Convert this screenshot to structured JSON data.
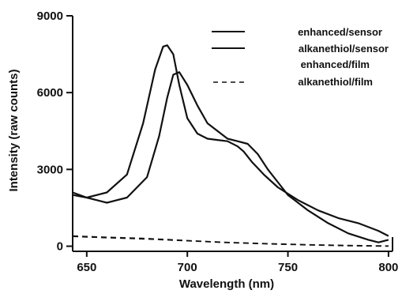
{
  "chart_data": {
    "type": "line",
    "xlabel": "Wavelength (nm)",
    "ylabel": "Intensity (raw counts)",
    "xlim": [
      643,
      802
    ],
    "ylim": [
      -200,
      9000
    ],
    "xticks": [
      650,
      700,
      750,
      800
    ],
    "yticks": [
      0,
      3000,
      6000,
      9000
    ],
    "grid": false,
    "legend_position": "top-right",
    "series": [
      {
        "name": "enhanced/sensor",
        "dash": "solid",
        "x": [
          643,
          650,
          660,
          670,
          678,
          684,
          688,
          690,
          693,
          696,
          700,
          705,
          710,
          715,
          720,
          725,
          728,
          732,
          738,
          745,
          755,
          765,
          775,
          785,
          795,
          800
        ],
        "y": [
          2000,
          1900,
          2100,
          2800,
          4800,
          6900,
          7800,
          7850,
          7500,
          6300,
          5000,
          4400,
          4200,
          4150,
          4100,
          3900,
          3700,
          3300,
          2800,
          2300,
          1800,
          1400,
          1100,
          900,
          600,
          400
        ]
      },
      {
        "name": "alkanethiol/sensor",
        "dash": "solid",
        "x": [
          643,
          650,
          660,
          670,
          680,
          686,
          690,
          693,
          696,
          700,
          705,
          710,
          715,
          720,
          725,
          730,
          735,
          740,
          745,
          750,
          760,
          770,
          780,
          790,
          795,
          800
        ],
        "y": [
          2100,
          1900,
          1700,
          1900,
          2700,
          4300,
          5800,
          6700,
          6800,
          6300,
          5500,
          4800,
          4500,
          4200,
          4100,
          4000,
          3600,
          3000,
          2500,
          2000,
          1400,
          900,
          500,
          250,
          150,
          250
        ]
      },
      {
        "name": "enhanced/film",
        "dash": "dashed",
        "x": [
          643,
          660,
          680,
          700,
          720,
          740,
          760,
          780,
          800
        ],
        "y": [
          400,
          350,
          300,
          220,
          150,
          100,
          60,
          30,
          10
        ]
      },
      {
        "name": "alkanethiol/film",
        "dash": "dashed",
        "x": [
          643,
          660,
          680,
          700,
          720,
          740,
          760,
          780,
          800
        ],
        "y": [
          380,
          330,
          280,
          210,
          140,
          90,
          50,
          20,
          0
        ]
      }
    ]
  }
}
